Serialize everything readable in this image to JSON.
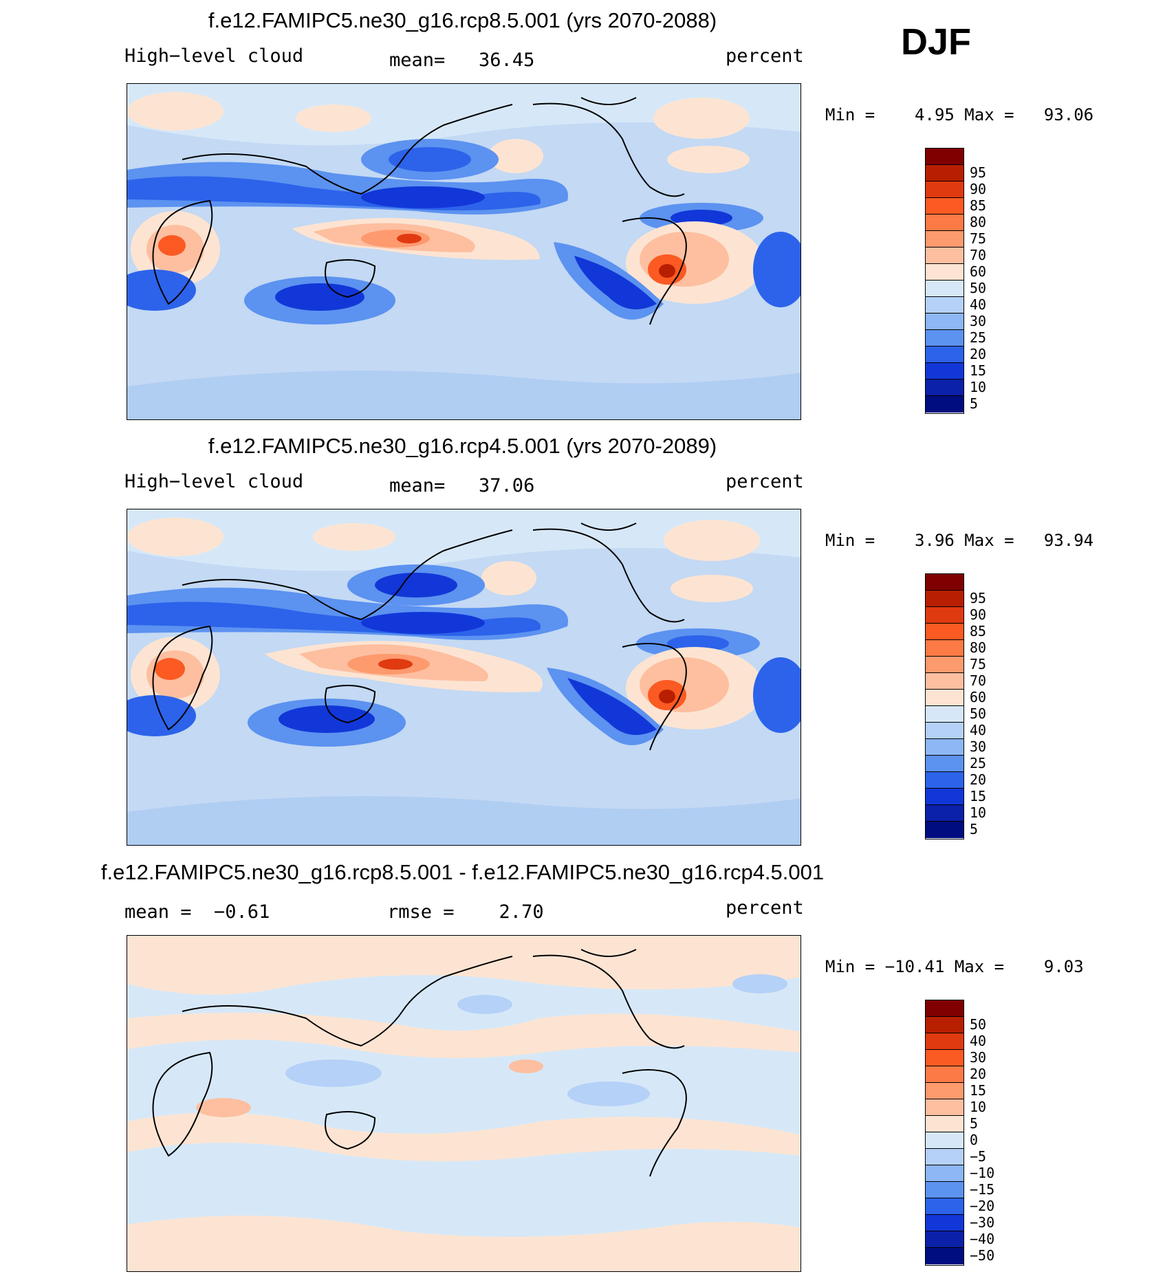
{
  "season": "DJF",
  "panels": [
    {
      "title": "f.e12.FAMIPC5.ne30_g16.rcp8.5.001 (yrs 2070-2088)",
      "left_label": "High−level cloud",
      "center_label": "mean=   36.45",
      "units": "percent",
      "minmax": "Min =    4.95 Max =   93.06",
      "colorbar_labels": [
        "95",
        "90",
        "85",
        "80",
        "75",
        "70",
        "60",
        "50",
        "40",
        "30",
        "25",
        "20",
        "15",
        "10",
        "5"
      ],
      "colorbar_colors": [
        "#800000",
        "#b81e00",
        "#e03a10",
        "#fb5a22",
        "#fc7a45",
        "#fd9a6e",
        "#fdbfa0",
        "#fde4d2",
        "#d6e8f8",
        "#b5d1f7",
        "#8db7f5",
        "#5c92f0",
        "#2c63ea",
        "#1237d8",
        "#0b21a9",
        "#000d80"
      ]
    },
    {
      "title": "f.e12.FAMIPC5.ne30_g16.rcp4.5.001 (yrs 2070-2089)",
      "left_label": "High−level cloud",
      "center_label": "mean=   37.06",
      "units": "percent",
      "minmax": "Min =    3.96 Max =   93.94",
      "colorbar_labels": [
        "95",
        "90",
        "85",
        "80",
        "75",
        "70",
        "60",
        "50",
        "40",
        "30",
        "25",
        "20",
        "15",
        "10",
        "5"
      ],
      "colorbar_colors": [
        "#800000",
        "#b81e00",
        "#e03a10",
        "#fb5a22",
        "#fc7a45",
        "#fd9a6e",
        "#fdbfa0",
        "#fde4d2",
        "#d6e8f8",
        "#b5d1f7",
        "#8db7f5",
        "#5c92f0",
        "#2c63ea",
        "#1237d8",
        "#0b21a9",
        "#000d80"
      ]
    },
    {
      "title": "f.e12.FAMIPC5.ne30_g16.rcp8.5.001 - f.e12.FAMIPC5.ne30_g16.rcp4.5.001",
      "left_label": "mean =  −0.61",
      "center_label": "rmse =    2.70",
      "units": "percent",
      "minmax": "Min = −10.41 Max =    9.03",
      "colorbar_labels": [
        "50",
        "40",
        "30",
        "20",
        "15",
        "10",
        "5",
        "0",
        "−5",
        "−10",
        "−15",
        "−20",
        "−30",
        "−40",
        "−50"
      ],
      "colorbar_colors": [
        "#800000",
        "#b81e00",
        "#e03a10",
        "#fb5a22",
        "#fc7a45",
        "#fd9a6e",
        "#fdbfa0",
        "#fde4d2",
        "#d6e8f8",
        "#b5d1f7",
        "#8db7f5",
        "#5c92f0",
        "#2c63ea",
        "#1237d8",
        "#0b21a9",
        "#000d80"
      ]
    }
  ]
}
